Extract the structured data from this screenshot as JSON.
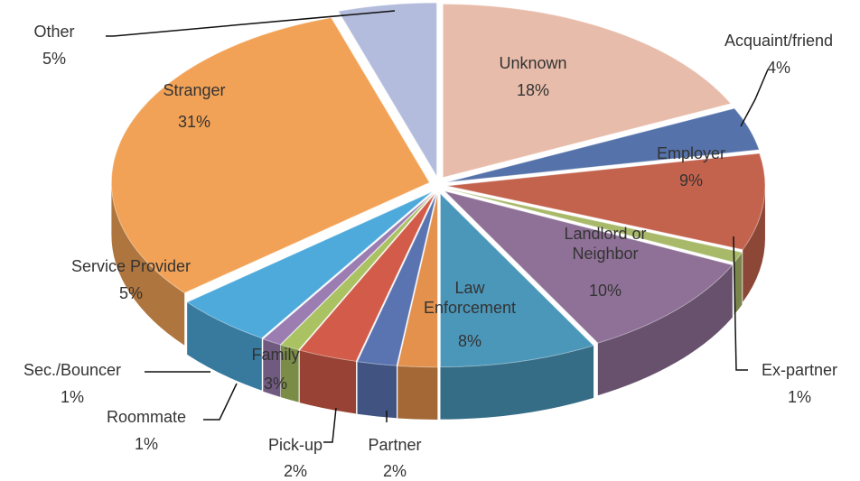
{
  "chart_data": {
    "type": "pie",
    "categories": [
      "Unknown",
      "Acquaint/friend",
      "Employer",
      "Ex-partner",
      "Landlord or Neighbor",
      "Law Enforcement",
      "Partner",
      "Pick-up",
      "Family",
      "Roommate",
      "Sec./Bouncer",
      "Service Provider",
      "Stranger",
      "Other"
    ],
    "values": [
      18,
      4,
      9,
      1,
      10,
      8,
      2,
      2,
      3,
      1,
      1,
      5,
      31,
      5
    ],
    "value_labels": [
      "18%",
      "4%",
      "9%",
      "1%",
      "10%",
      "8%",
      "2%",
      "2%",
      "3%",
      "1%",
      "1%",
      "5%",
      "31%",
      "5%"
    ],
    "colors": [
      "#e8bcaa",
      "#5573aa",
      "#c4634d",
      "#a9b96a",
      "#8f7197",
      "#4b97ba",
      "#e3914c",
      "#5a74b2",
      "#d25c49",
      "#aac262",
      "#9b7db2",
      "#4eaadb",
      "#f2a256",
      "#b3bcdc"
    ]
  }
}
